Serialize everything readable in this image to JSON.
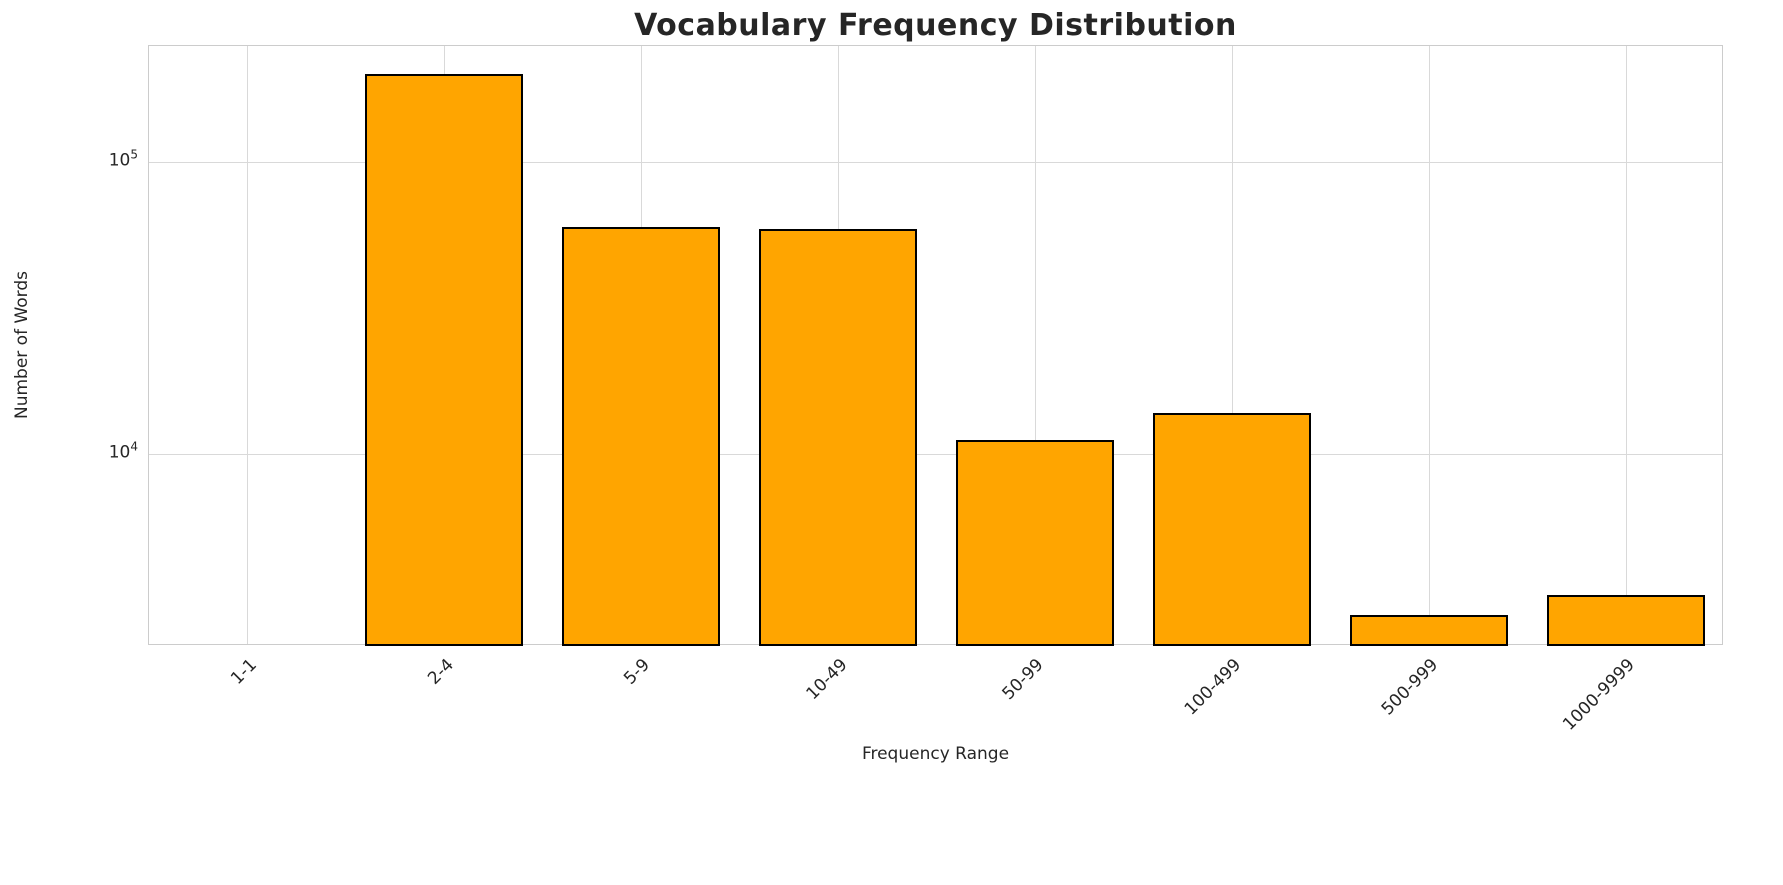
{
  "chart_data": {
    "type": "bar",
    "title": "Vocabulary Frequency Distribution",
    "xlabel": "Frequency Range",
    "ylabel": "Number of Words",
    "categories": [
      "1-1",
      "2-4",
      "5-9",
      "10-49",
      "50-99",
      "100-499",
      "500-999",
      "1000-9999"
    ],
    "values": [
      0,
      200000,
      60000,
      59000,
      11200,
      13800,
      2800,
      3300
    ],
    "yscale": "log",
    "ylim": [
      2200,
      250000
    ],
    "yticks": [
      {
        "value": 10000,
        "base": "10",
        "exp": "4"
      },
      {
        "value": 100000,
        "base": "10",
        "exp": "5"
      }
    ],
    "grid": true,
    "legend": "none",
    "bar_color": "#FFA500",
    "bar_edge_color": "#000000",
    "grid_color": "#d9d9d9",
    "title_color": "#262626",
    "text_color": "#262626",
    "background_color": "#ffffff"
  }
}
